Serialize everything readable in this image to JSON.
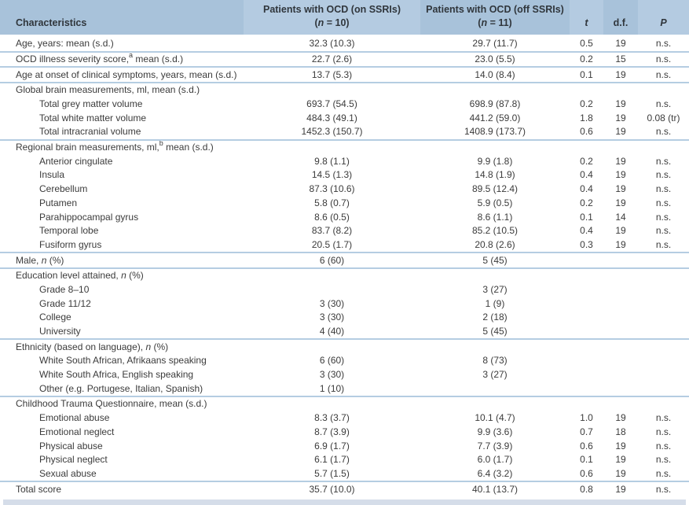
{
  "colors": {
    "header_bg_dark": "#a8c2da",
    "header_bg_light": "#b4cbe1",
    "separator": "#b5cde2",
    "bottom_bar": "#d5dde9",
    "text": "#3b3b3b",
    "header_text": "#30363c"
  },
  "header": {
    "col1": "Characteristics",
    "col2_line1": "Patients with OCD (on SSRIs)",
    "col2_line2": "(_n_ = 10)",
    "col3_line1": "Patients with OCD (off SSRIs)",
    "col3_line2": "(_n_ = 11)",
    "col4": "_t_",
    "col5": "d.f.",
    "col6": "_P_"
  },
  "sections": [
    {
      "rows": [
        {
          "label": "Age, years: mean (s.d.)",
          "indent": false,
          "on": "32.3 (10.3)",
          "off": "29.7 (11.7)",
          "t": "0.5",
          "df": "19",
          "p": "n.s."
        }
      ]
    },
    {
      "rows": [
        {
          "label": "OCD illness severity score,^a^ mean (s.d.)",
          "indent": false,
          "on": "22.7 (2.6)",
          "off": "23.0 (5.5)",
          "t": "0.2",
          "df": "15",
          "p": "n.s."
        }
      ]
    },
    {
      "rows": [
        {
          "label": "Age at onset of clinical symptoms, years, mean (s.d.)",
          "indent": false,
          "on": "13.7 (5.3)",
          "off": "14.0 (8.4)",
          "t": "0.1",
          "df": "19",
          "p": "n.s."
        }
      ]
    },
    {
      "rows": [
        {
          "label": "Global brain measurements, ml, mean (s.d.)",
          "indent": false,
          "on": "",
          "off": "",
          "t": "",
          "df": "",
          "p": ""
        },
        {
          "label": "Total grey matter volume",
          "indent": true,
          "on": "693.7 (54.5)",
          "off": "698.9 (87.8)",
          "t": "0.2",
          "df": "19",
          "p": "n.s."
        },
        {
          "label": "Total white matter volume",
          "indent": true,
          "on": "484.3 (49.1)",
          "off": "441.2 (59.0)",
          "t": "1.8",
          "df": "19",
          "p": "0.08 (tr)"
        },
        {
          "label": "Total intracranial volume",
          "indent": true,
          "on": "1452.3 (150.7)",
          "off": "1408.9 (173.7)",
          "t": "0.6",
          "df": "19",
          "p": "n.s."
        }
      ]
    },
    {
      "rows": [
        {
          "label": "Regional brain measurements, ml,^b^ mean (s.d.)",
          "indent": false,
          "on": "",
          "off": "",
          "t": "",
          "df": "",
          "p": ""
        },
        {
          "label": "Anterior cingulate",
          "indent": true,
          "on": "9.8 (1.1)",
          "off": "9.9 (1.8)",
          "t": "0.2",
          "df": "19",
          "p": "n.s."
        },
        {
          "label": "Insula",
          "indent": true,
          "on": "14.5 (1.3)",
          "off": "14.8 (1.9)",
          "t": "0.4",
          "df": "19",
          "p": "n.s."
        },
        {
          "label": "Cerebellum",
          "indent": true,
          "on": "87.3 (10.6)",
          "off": "89.5 (12.4)",
          "t": "0.4",
          "df": "19",
          "p": "n.s."
        },
        {
          "label": "Putamen",
          "indent": true,
          "on": "5.8 (0.7)",
          "off": "5.9 (0.5)",
          "t": "0.2",
          "df": "19",
          "p": "n.s."
        },
        {
          "label": "Parahippocampal gyrus",
          "indent": true,
          "on": "8.6 (0.5)",
          "off": "8.6 (1.1)",
          "t": "0.1",
          "df": "14",
          "p": "n.s."
        },
        {
          "label": "Temporal lobe",
          "indent": true,
          "on": "83.7 (8.2)",
          "off": "85.2 (10.5)",
          "t": "0.4",
          "df": "19",
          "p": "n.s."
        },
        {
          "label": "Fusiform gyrus",
          "indent": true,
          "on": "20.5 (1.7)",
          "off": "20.8 (2.6)",
          "t": "0.3",
          "df": "19",
          "p": "n.s."
        }
      ]
    },
    {
      "rows": [
        {
          "label": "Male, _n_ (%)",
          "indent": false,
          "on": "6 (60)",
          "off": "5 (45)",
          "t": "",
          "df": "",
          "p": ""
        }
      ]
    },
    {
      "rows": [
        {
          "label": "Education level attained, _n_ (%)",
          "indent": false,
          "on": "",
          "off": "",
          "t": "",
          "df": "",
          "p": ""
        },
        {
          "label": "Grade 8–10",
          "indent": true,
          "on": "",
          "off": "3 (27)",
          "t": "",
          "df": "",
          "p": ""
        },
        {
          "label": "Grade 11/12",
          "indent": true,
          "on": "3 (30)",
          "off": "1 (9)",
          "t": "",
          "df": "",
          "p": ""
        },
        {
          "label": "College",
          "indent": true,
          "on": "3 (30)",
          "off": "2 (18)",
          "t": "",
          "df": "",
          "p": ""
        },
        {
          "label": "University",
          "indent": true,
          "on": "4 (40)",
          "off": "5 (45)",
          "t": "",
          "df": "",
          "p": ""
        }
      ]
    },
    {
      "rows": [
        {
          "label": "Ethnicity (based on language), _n_ (%)",
          "indent": false,
          "on": "",
          "off": "",
          "t": "",
          "df": "",
          "p": ""
        },
        {
          "label": "White South African, Afrikaans speaking",
          "indent": true,
          "on": "6 (60)",
          "off": "8 (73)",
          "t": "",
          "df": "",
          "p": ""
        },
        {
          "label": "White South Africa, English speaking",
          "indent": true,
          "on": "3 (30)",
          "off": "3 (27)",
          "t": "",
          "df": "",
          "p": ""
        },
        {
          "label": "Other (e.g. Portugese, Italian, Spanish)",
          "indent": true,
          "on": "1 (10)",
          "off": "",
          "t": "",
          "df": "",
          "p": ""
        }
      ]
    },
    {
      "rows": [
        {
          "label": "Childhood Trauma Questionnaire, mean (s.d.)",
          "indent": false,
          "on": "",
          "off": "",
          "t": "",
          "df": "",
          "p": ""
        },
        {
          "label": "Emotional abuse",
          "indent": true,
          "on": "8.3 (3.7)",
          "off": "10.1 (4.7)",
          "t": "1.0",
          "df": "19",
          "p": "n.s."
        },
        {
          "label": "Emotional neglect",
          "indent": true,
          "on": "8.7 (3.9)",
          "off": "9.9 (3.6)",
          "t": "0.7",
          "df": "18",
          "p": "n.s."
        },
        {
          "label": "Physical abuse",
          "indent": true,
          "on": "6.9 (1.7)",
          "off": "7.7 (3.9)",
          "t": "0.6",
          "df": "19",
          "p": "n.s."
        },
        {
          "label": "Physical neglect",
          "indent": true,
          "on": "6.1 (1.7)",
          "off": "6.0 (1.7)",
          "t": "0.1",
          "df": "19",
          "p": "n.s."
        },
        {
          "label": "Sexual abuse",
          "indent": true,
          "on": "5.7 (1.5)",
          "off": "6.4 (3.2)",
          "t": "0.6",
          "df": "19",
          "p": "n.s."
        }
      ]
    },
    {
      "rows": [
        {
          "label": "Total score",
          "indent": false,
          "on": "35.7 (10.0)",
          "off": "40.1 (13.7)",
          "t": "0.8",
          "df": "19",
          "p": "n.s."
        }
      ]
    }
  ]
}
